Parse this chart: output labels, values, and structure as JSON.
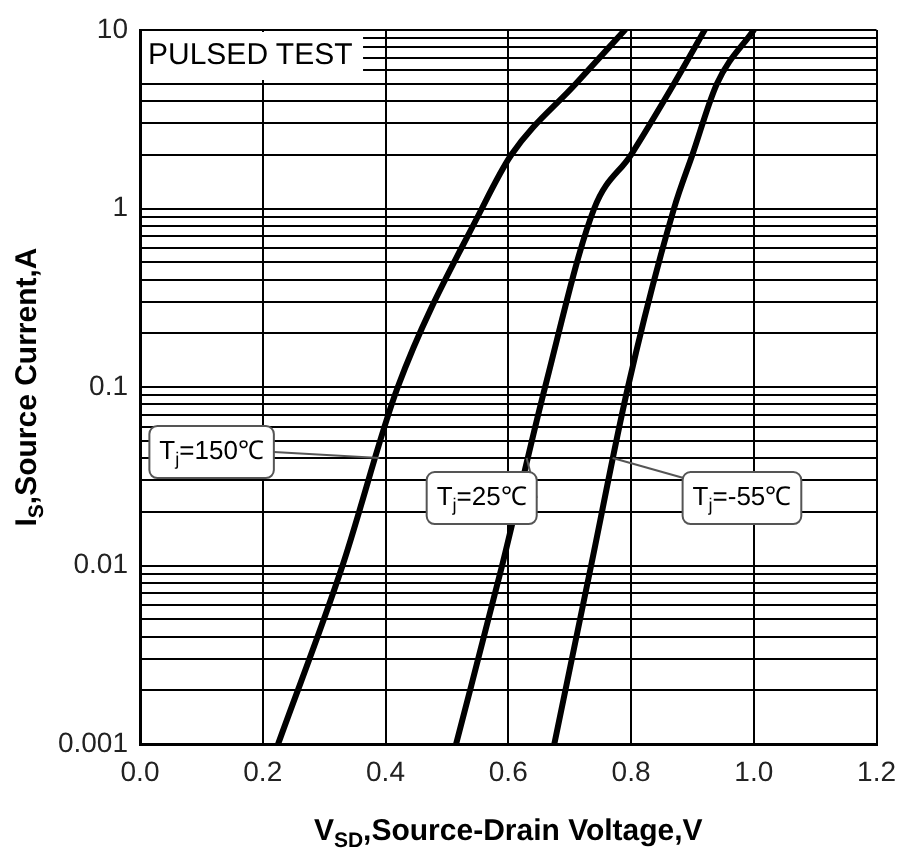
{
  "chart_data": {
    "type": "line",
    "xlabel": "V$_{SD}$,Source-Drain Voltage,V",
    "ylabel": "I$_{S}$,Source Current,A",
    "series": [
      {
        "color": "#000000",
        "x": [
          0.225,
          0.33,
          0.42,
          0.557,
          0.605,
          0.71,
          0.79
        ],
        "values": [
          0.001,
          0.01,
          0.1,
          1,
          2,
          5,
          10
        ]
      },
      {
        "color": "#000000",
        "x": [
          0.515,
          0.59,
          0.66,
          0.74,
          0.8,
          0.87,
          0.92
        ],
        "values": [
          0.001,
          0.01,
          0.1,
          1,
          2,
          5,
          10
        ]
      },
      {
        "color": "#000000",
        "x": [
          0.675,
          0.735,
          0.795,
          0.87,
          0.9,
          0.94,
          1.0
        ],
        "values": [
          0.001,
          0.01,
          0.1,
          1,
          2,
          5,
          10
        ]
      }
    ],
    "xlim": [
      0,
      1.2
    ],
    "xticks": [
      {
        "value": 0,
        "label": "0.0"
      },
      {
        "value": 0.2,
        "label": "0.2"
      },
      {
        "value": 0.4,
        "label": "0.4"
      },
      {
        "value": 0.6,
        "label": "0.6"
      },
      {
        "value": 0.8,
        "label": "0.8"
      },
      {
        "value": 1,
        "label": "1.0"
      },
      {
        "value": 1.2,
        "label": "1.2"
      }
    ],
    "ylim": [
      0.001,
      10
    ],
    "yticks": [
      0.001,
      {
        "value": 0.002,
        "label": null
      },
      {
        "value": 0.003,
        "label": null
      },
      {
        "value": 0.004,
        "label": null
      },
      {
        "value": 0.005,
        "label": null
      },
      {
        "value": 0.006,
        "label": null
      },
      {
        "value": 0.007,
        "label": null
      },
      {
        "value": 0.008,
        "label": null
      },
      {
        "value": 0.009,
        "label": null
      },
      0.01,
      {
        "value": 0.02,
        "label": null
      },
      {
        "value": 0.03,
        "label": null
      },
      {
        "value": 0.04,
        "label": null
      },
      {
        "value": 0.05,
        "label": null
      },
      {
        "value": 0.06,
        "label": null
      },
      {
        "value": 0.07,
        "label": null
      },
      {
        "value": 0.08,
        "label": null
      },
      {
        "value": 0.09,
        "label": null
      },
      0.1,
      {
        "value": 0.2,
        "label": null
      },
      {
        "value": 0.3,
        "label": null
      },
      {
        "value": 0.4,
        "label": null
      },
      {
        "value": 0.5,
        "label": null
      },
      {
        "value": 0.6,
        "label": null
      },
      {
        "value": 0.7,
        "label": null
      },
      {
        "value": 0.8,
        "label": null
      },
      {
        "value": 0.9,
        "label": null
      },
      1,
      {
        "value": 2,
        "label": null
      },
      {
        "value": 3,
        "label": null
      },
      {
        "value": 4,
        "label": null
      },
      {
        "value": 5,
        "label": null
      },
      {
        "value": 6,
        "label": null
      },
      {
        "value": 7,
        "label": null
      },
      {
        "value": 8,
        "label": null
      },
      {
        "value": 9,
        "label": null
      },
      10
    ],
    "log": "y",
    "grid": true,
    "legend": false,
    "marker": "none",
    "line_style": "solid",
    "annotations": [
      "PULSED TEST",
      {
        "text": "T$_{j}$=150℃",
        "x": 0.39,
        "y": 0.04
      },
      {
        "text": "T$_{j}$=25℃",
        "x": 0.63,
        "y": 0.04
      },
      {
        "text": "T$_{j}$=-55℃",
        "x": 0.77,
        "y": 0.04
      }
    ]
  }
}
